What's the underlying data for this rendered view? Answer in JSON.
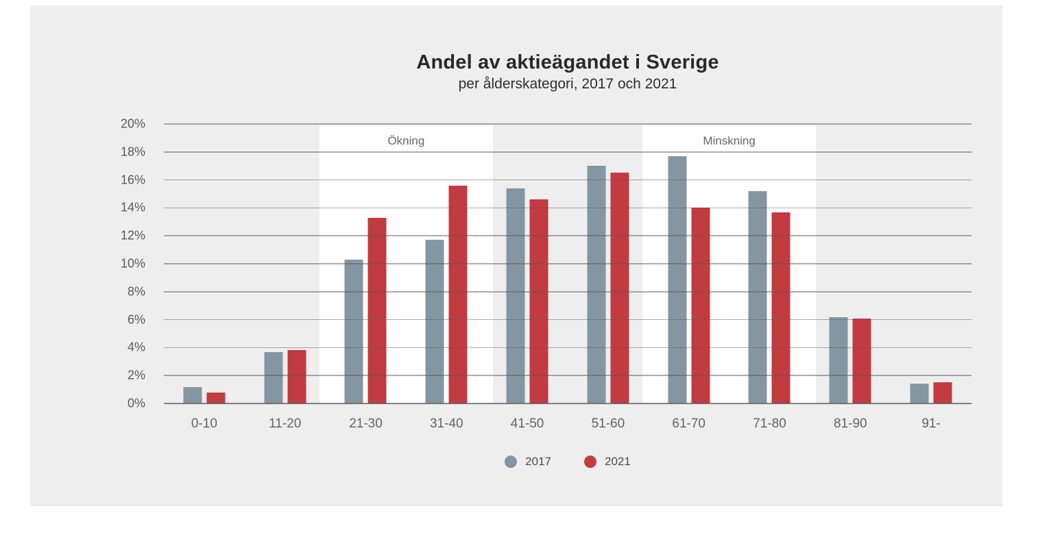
{
  "chart_data": {
    "type": "bar",
    "title": "Andel av aktieägandet i Sverige",
    "subtitle": "per ålderskategori, 2017 och 2021",
    "categories": [
      "0-10",
      "11-20",
      "21-30",
      "31-40",
      "41-50",
      "51-60",
      "61-70",
      "71-80",
      "81-90",
      "91-"
    ],
    "series": [
      {
        "name": "2017",
        "color": "#8496A1",
        "values": [
          1.2,
          3.7,
          10.3,
          11.7,
          15.4,
          17.0,
          17.7,
          15.2,
          6.2,
          1.4
        ]
      },
      {
        "name": "2021",
        "color": "#C13B41",
        "values": [
          0.8,
          3.8,
          13.3,
          15.6,
          14.6,
          16.5,
          14.0,
          13.7,
          6.1,
          1.5
        ]
      }
    ],
    "xlabel": "",
    "ylabel": "",
    "ylim": [
      0,
      20
    ],
    "ytick_step": 2,
    "ytick_labels": [
      "0%",
      "2%",
      "4%",
      "6%",
      "8%",
      "10%",
      "12%",
      "14%",
      "16%",
      "18%",
      "20%"
    ],
    "grid": true,
    "legend_position": "bottom-center",
    "annotations": [
      {
        "label": "Ökning",
        "from_category": "21-30",
        "to_category": "31-40",
        "background": "#ffffff"
      },
      {
        "label": "Minskning",
        "from_category": "61-70",
        "to_category": "71-80",
        "background": "#ffffff"
      }
    ]
  },
  "colors": {
    "page_background": "#ffffff",
    "card_background": "#eeeeee",
    "gridline": "rgba(90,90,90,0.5)",
    "series_2017": "#8496A1",
    "series_2021": "#C13B41"
  }
}
